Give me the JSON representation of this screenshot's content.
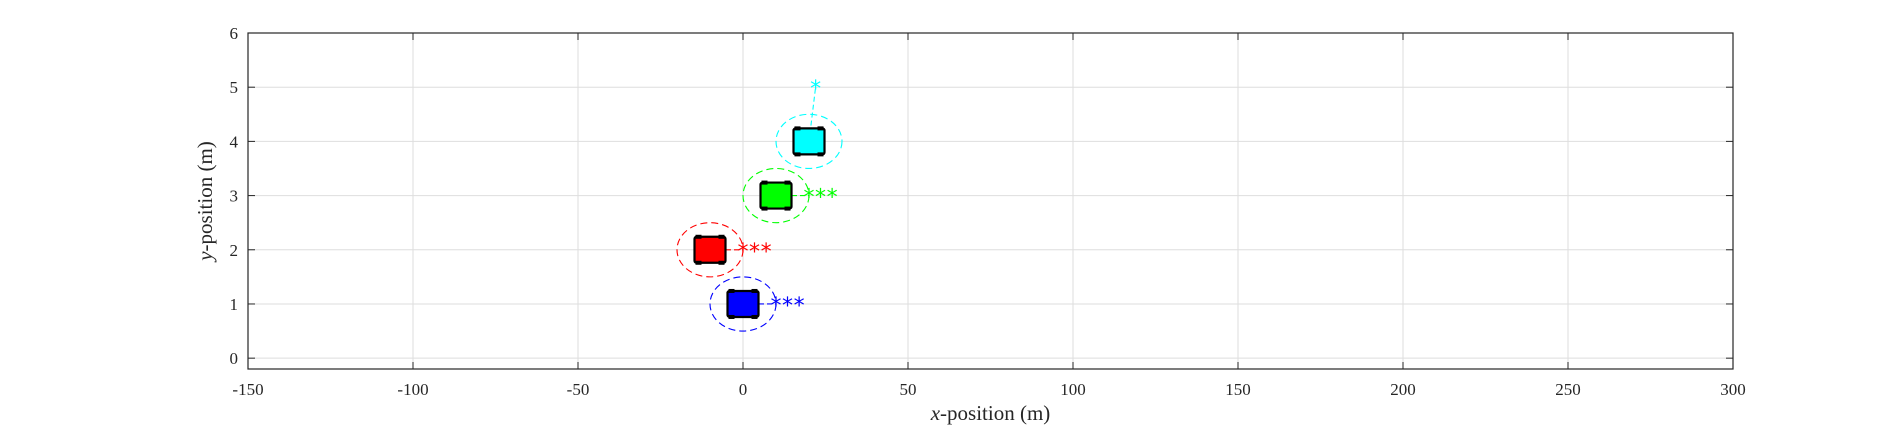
{
  "chart_data": {
    "type": "scatter",
    "title": "",
    "xlabel": {
      "var": "x",
      "rest": "-position (m)"
    },
    "ylabel": {
      "var": "y",
      "rest": "-position (m)"
    },
    "xlim": [
      -150,
      300
    ],
    "ylim": [
      -0.2,
      6
    ],
    "xticks": [
      -150,
      -100,
      -50,
      0,
      50,
      100,
      150,
      200,
      250,
      300
    ],
    "yticks": [
      0,
      1,
      2,
      3,
      4,
      5,
      6
    ],
    "grid": true,
    "vehicles": [
      {
        "color": "#0000ff",
        "x": 0,
        "y": 1,
        "rx": 10,
        "ry": 0.5,
        "targets": [
          [
            10,
            1
          ],
          [
            13.5,
            1
          ],
          [
            17,
            1
          ]
        ]
      },
      {
        "color": "#ff0000",
        "x": -10,
        "y": 2,
        "rx": 10,
        "ry": 0.5,
        "targets": [
          [
            0,
            2
          ],
          [
            3.5,
            2
          ],
          [
            7,
            2
          ]
        ]
      },
      {
        "color": "#00ff00",
        "x": 10,
        "y": 3,
        "rx": 10,
        "ry": 0.5,
        "targets": [
          [
            20,
            3
          ],
          [
            23.5,
            3
          ],
          [
            27,
            3
          ]
        ]
      },
      {
        "color": "#00ffff",
        "x": 20,
        "y": 4,
        "rx": 10,
        "ry": 0.5,
        "targets": [
          [
            22,
            5
          ]
        ]
      }
    ]
  }
}
